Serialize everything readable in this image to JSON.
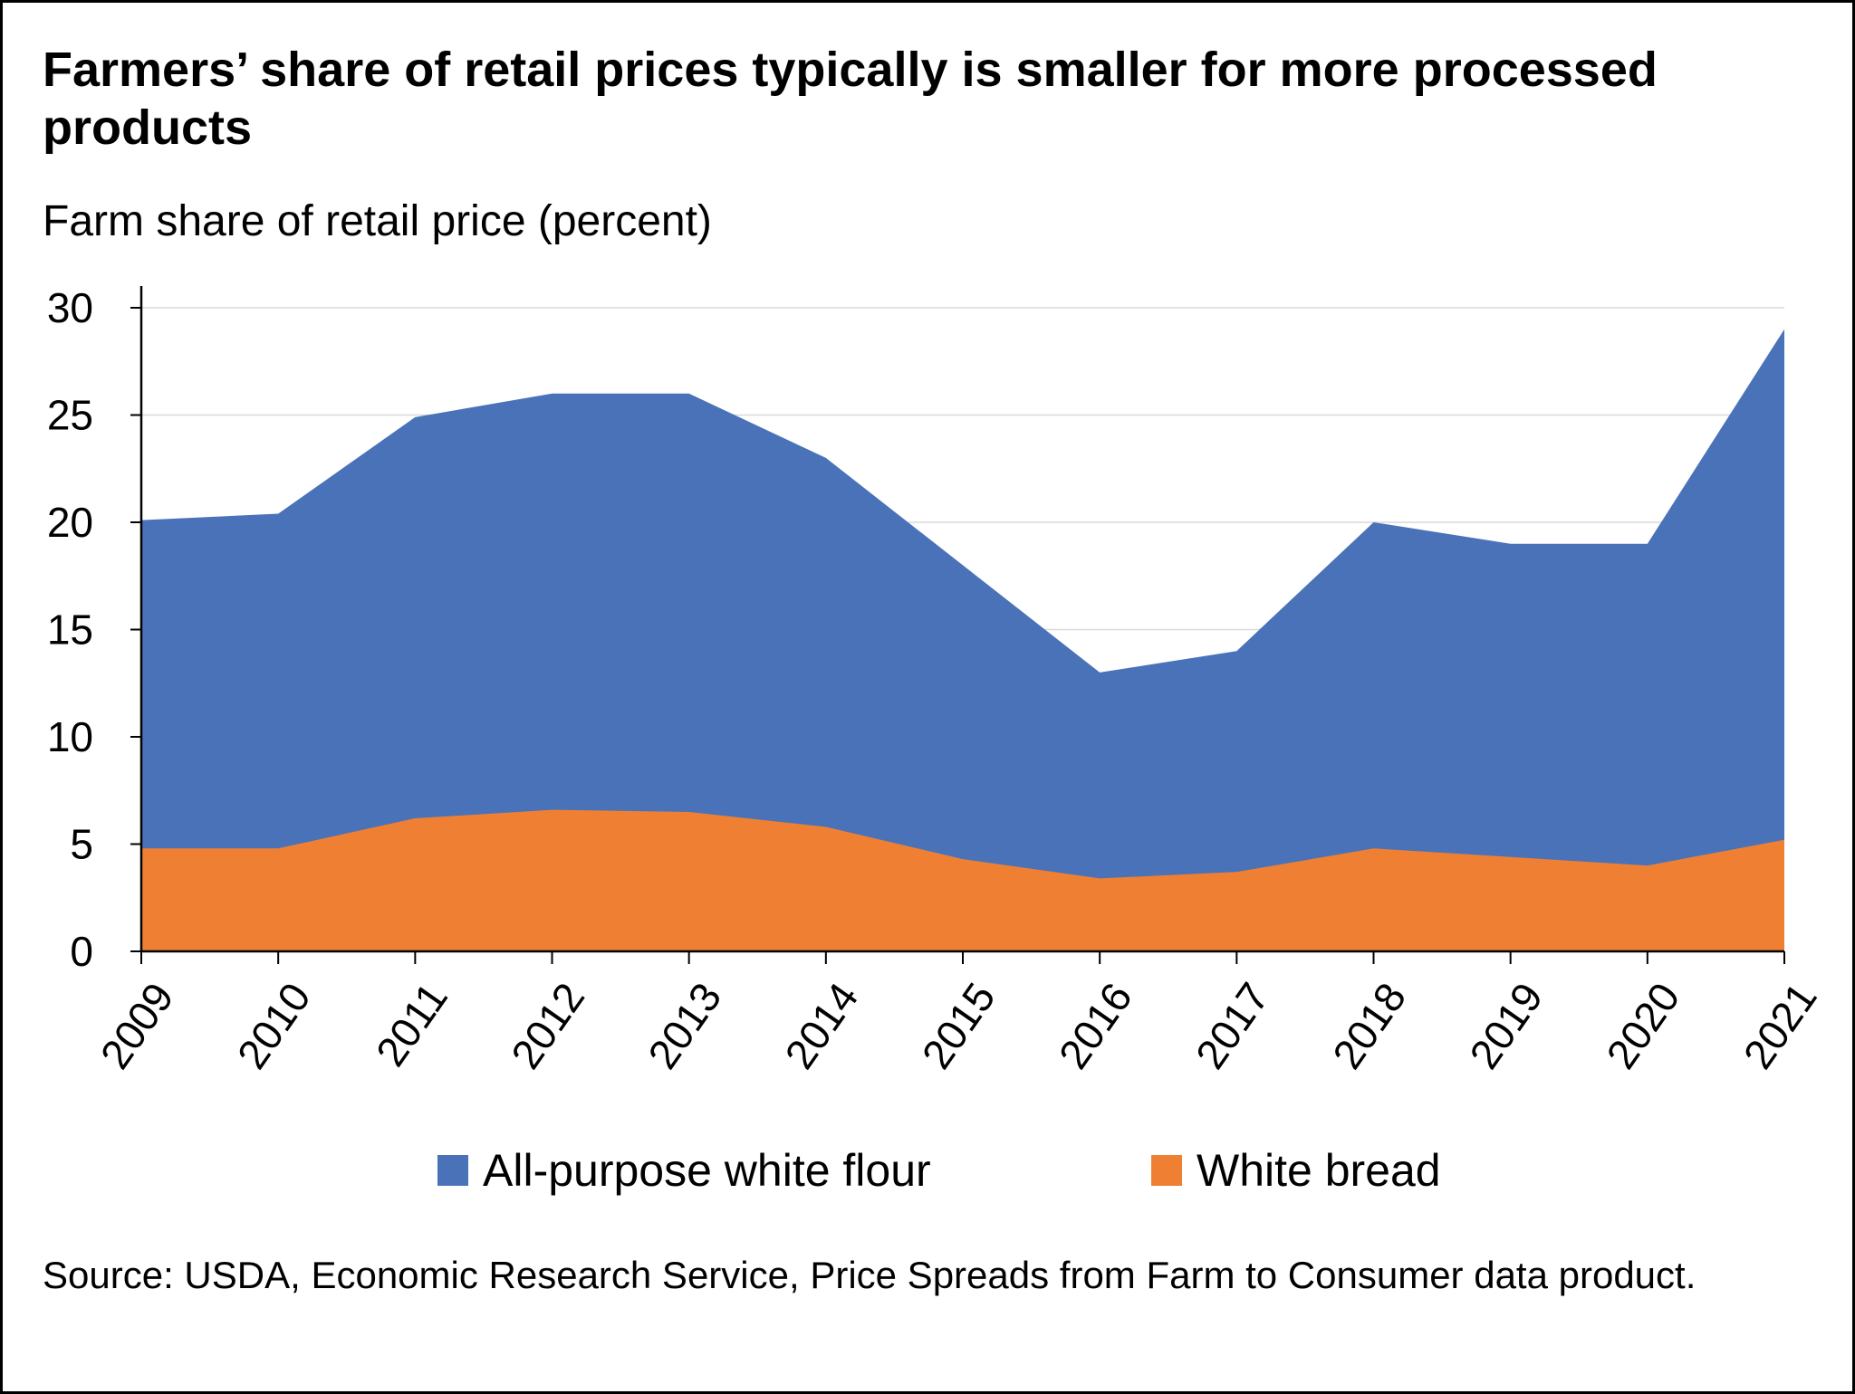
{
  "title": "Farmers’ share of retail prices typically is smaller for more processed products",
  "source": "Source: USDA, Economic Research Service, Price Spreads from Farm to Consumer data product.",
  "colors": {
    "flour": "#4a72b8",
    "bread": "#ef8033",
    "grid": "#d9d9d9"
  },
  "chart_data": {
    "type": "area",
    "ylabel": "Farm share of retail price (percent)",
    "xlabel": "",
    "ylim": [
      0,
      30
    ],
    "yticks": [
      "0",
      "5",
      "10",
      "15",
      "20",
      "25",
      "30"
    ],
    "x": [
      "2009",
      "2010",
      "2011",
      "2012",
      "2013",
      "2014",
      "2015",
      "2016",
      "2017",
      "2018",
      "2019",
      "2020",
      "2021"
    ],
    "grid": true,
    "legend_position": "bottom",
    "series": [
      {
        "name": "All-purpose white flour",
        "values": [
          20.1,
          20.4,
          24.9,
          26,
          26,
          23,
          18,
          13,
          14,
          20,
          19,
          19,
          29
        ]
      },
      {
        "name": "White bread",
        "values": [
          4.8,
          4.8,
          6.2,
          6.6,
          6.5,
          5.8,
          4.3,
          3.4,
          3.7,
          4.8,
          4.4,
          4.0,
          5.2
        ]
      }
    ]
  }
}
